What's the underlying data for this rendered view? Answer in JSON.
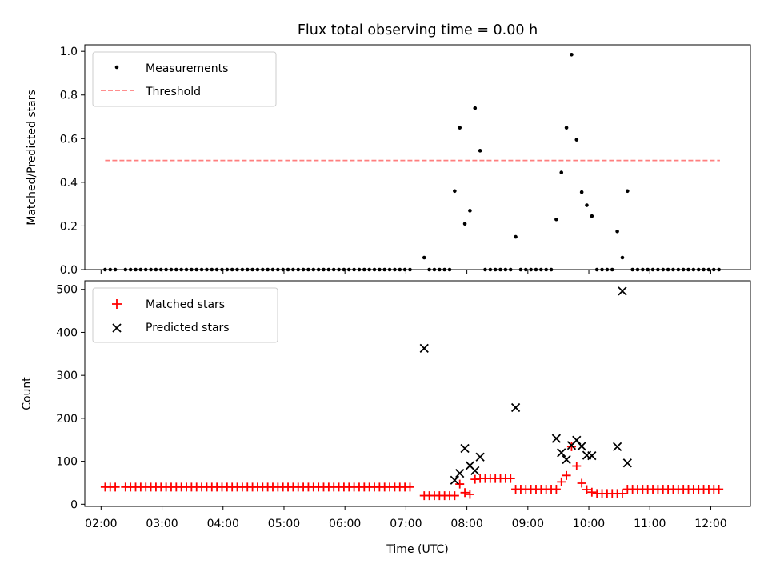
{
  "figure": {
    "title": "Flux total observing time = 0.00 h"
  },
  "chart_data": [
    {
      "type": "scatter",
      "ylabel": "Matched/Predicted stars",
      "xlim": [
        "01:44",
        "12:39"
      ],
      "ylim": [
        0,
        1.03
      ],
      "yticks": [
        0.0,
        0.2,
        0.4,
        0.6,
        0.8,
        1.0
      ],
      "ytick_labels": [
        "0.0",
        "0.2",
        "0.4",
        "0.6",
        "0.8",
        "1.0"
      ],
      "legend_position": "top-left",
      "legend": {
        "measurements": "Measurements",
        "threshold": "Threshold"
      },
      "threshold": {
        "value": 0.5,
        "x": [
          "02:04",
          "12:09"
        ],
        "color": "#ff7f7f"
      },
      "measurements_color": "#000000",
      "measurements": [
        [
          "07:18",
          0.055
        ],
        [
          "07:48",
          0.36
        ],
        [
          "07:53",
          0.65
        ],
        [
          "07:58",
          0.21
        ],
        [
          "08:03",
          0.27
        ],
        [
          "08:08",
          0.74
        ],
        [
          "08:13",
          0.545
        ],
        [
          "08:48",
          0.15
        ],
        [
          "09:28",
          0.23
        ],
        [
          "09:33",
          0.445
        ],
        [
          "09:38",
          0.65
        ],
        [
          "09:43",
          0.985
        ],
        [
          "09:48",
          0.595
        ],
        [
          "09:53",
          0.355
        ],
        [
          "09:58",
          0.295
        ],
        [
          "10:03",
          0.245
        ],
        [
          "10:28",
          0.175
        ],
        [
          "10:33",
          0.055
        ],
        [
          "10:38",
          0.36
        ]
      ],
      "zero_segments": [
        [
          "02:04",
          "02:14"
        ],
        [
          "02:24",
          "07:08"
        ],
        [
          "07:23",
          "07:43"
        ],
        [
          "08:18",
          "08:43"
        ],
        [
          "08:53",
          "09:23"
        ],
        [
          "10:08",
          "10:23"
        ],
        [
          "10:43",
          "12:09"
        ]
      ],
      "zero_interval_minutes": 5
    },
    {
      "type": "scatter",
      "xlabel": "Time (UTC)",
      "ylabel": "Count",
      "xlim": [
        "01:44",
        "12:39"
      ],
      "ylim": [
        -5,
        520
      ],
      "xticks": [
        "02:00",
        "03:00",
        "04:00",
        "05:00",
        "06:00",
        "07:00",
        "08:00",
        "09:00",
        "10:00",
        "11:00",
        "12:00"
      ],
      "yticks": [
        0,
        100,
        200,
        300,
        400,
        500
      ],
      "ytick_labels": [
        "0",
        "100",
        "200",
        "300",
        "400",
        "500"
      ],
      "legend_position": "top-left",
      "series": [
        {
          "name": "Matched stars",
          "color": "#ff0000",
          "marker": "+",
          "segments": [
            {
              "from": "02:04",
              "to": "02:14",
              "value": 40
            },
            {
              "from": "02:24",
              "to": "07:08",
              "value": 40
            },
            {
              "from": "07:18",
              "to": "07:43",
              "value": 20
            },
            {
              "from": "08:18",
              "to": "08:43",
              "value": 60
            },
            {
              "from": "08:48",
              "to": "09:23",
              "value": 35
            },
            {
              "from": "10:08",
              "to": "10:28",
              "value": 25
            },
            {
              "from": "10:38",
              "to": "12:09",
              "value": 35
            }
          ],
          "points": [
            [
              "07:48",
              20
            ],
            [
              "07:53",
              47
            ],
            [
              "07:58",
              27
            ],
            [
              "08:03",
              23
            ],
            [
              "08:08",
              58
            ],
            [
              "08:13",
              60
            ],
            [
              "09:28",
              35
            ],
            [
              "09:33",
              52
            ],
            [
              "09:38",
              67
            ],
            [
              "09:43",
              134
            ],
            [
              "09:48",
              89
            ],
            [
              "09:53",
              49
            ],
            [
              "09:58",
              34
            ],
            [
              "10:03",
              28
            ],
            [
              "10:33",
              25
            ]
          ]
        },
        {
          "name": "Predicted stars",
          "color": "#000000",
          "marker": "x",
          "points": [
            [
              "07:18",
              363
            ],
            [
              "07:48",
              56
            ],
            [
              "07:53",
              72
            ],
            [
              "07:58",
              130
            ],
            [
              "08:03",
              90
            ],
            [
              "08:08",
              78
            ],
            [
              "08:13",
              110
            ],
            [
              "08:48",
              225
            ],
            [
              "09:28",
              153
            ],
            [
              "09:33",
              120
            ],
            [
              "09:38",
              104
            ],
            [
              "09:43",
              137
            ],
            [
              "09:48",
              149
            ],
            [
              "09:53",
              135
            ],
            [
              "09:58",
              114
            ],
            [
              "10:03",
              113
            ],
            [
              "10:28",
              134
            ],
            [
              "10:33",
              496
            ],
            [
              "10:38",
              96
            ]
          ]
        }
      ]
    }
  ]
}
